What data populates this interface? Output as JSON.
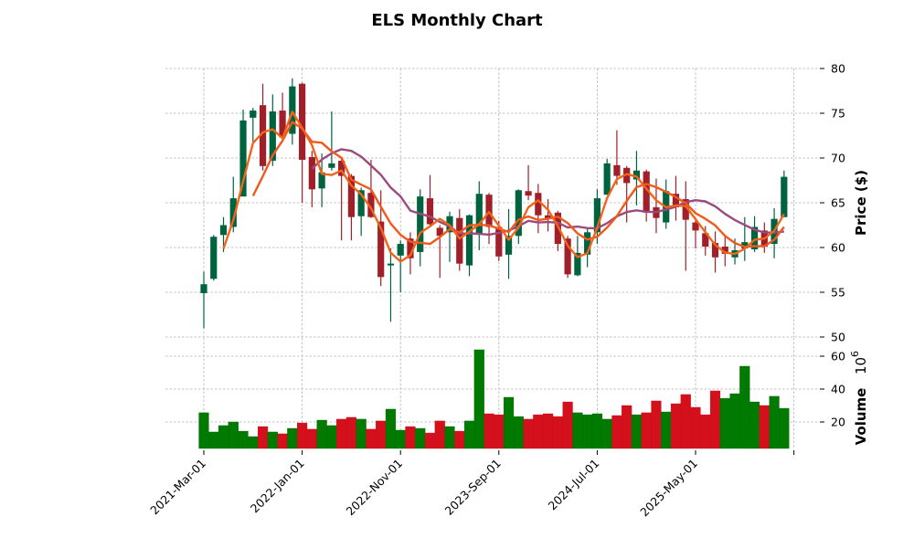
{
  "chart_data": {
    "type": "candlestick",
    "title": "ELS Monthly Chart",
    "ylabel": "Price ($)",
    "volume_label": "Volume",
    "volume_exponent": "10",
    "volume_exponent_power": "6",
    "ylim": [
      50,
      80
    ],
    "yticks": [
      "50",
      "55",
      "60",
      "65",
      "70",
      "75",
      "80"
    ],
    "volume_yticks": [
      "20",
      "40",
      "60"
    ],
    "volume_ylim": [
      4,
      64
    ],
    "start_month": "2021-03",
    "xtick_labels": [
      {
        "index": 0,
        "label": "2021-Mar-01"
      },
      {
        "index": 10,
        "label": "2022-Jan-01"
      },
      {
        "index": 20,
        "label": "2022-Nov-01"
      },
      {
        "index": 30,
        "label": "2023-Sep-01"
      },
      {
        "index": 40,
        "label": "2024-Jul-01"
      },
      {
        "index": 50,
        "label": "2025-May-01"
      }
    ],
    "grid": true,
    "mav_periods": [
      3,
      6,
      12
    ],
    "colors": {
      "up": "#006340",
      "down": "#a01f28",
      "vol_up": "#007a00",
      "vol_down": "#d4101c",
      "mav": [
        "#f26419",
        "#f0581c",
        "#9b4a7e"
      ]
    },
    "ohlc": [
      [
        54.9,
        57.3,
        51.0,
        55.9
      ],
      [
        56.5,
        61.4,
        56.3,
        61.2
      ],
      [
        61.4,
        63.4,
        59.5,
        62.5
      ],
      [
        62.3,
        67.9,
        61.7,
        65.5
      ],
      [
        65.7,
        75.4,
        65.7,
        74.2
      ],
      [
        74.5,
        75.6,
        71.8,
        75.3
      ],
      [
        75.9,
        78.3,
        68.6,
        69.1
      ],
      [
        69.7,
        77.1,
        69.1,
        75.2
      ],
      [
        75.3,
        77.3,
        72.2,
        72.3
      ],
      [
        72.7,
        78.9,
        71.5,
        78.0
      ],
      [
        78.3,
        78.4,
        65.0,
        69.8
      ],
      [
        70.1,
        70.8,
        64.5,
        66.5
      ],
      [
        66.6,
        70.5,
        64.5,
        68.4
      ],
      [
        68.9,
        75.2,
        68.6,
        69.4
      ],
      [
        69.7,
        69.9,
        60.8,
        68.0
      ],
      [
        68.0,
        68.2,
        60.8,
        63.4
      ],
      [
        63.5,
        66.7,
        61.3,
        66.4
      ],
      [
        66.1,
        69.8,
        63.3,
        63.4
      ],
      [
        62.9,
        66.4,
        55.7,
        56.7
      ],
      [
        58.0,
        59.9,
        51.7,
        58.2
      ],
      [
        59.1,
        60.8,
        55.0,
        60.4
      ],
      [
        61.0,
        61.7,
        57.0,
        58.8
      ],
      [
        59.5,
        66.5,
        57.9,
        65.7
      ],
      [
        65.5,
        68.1,
        62.3,
        62.6
      ],
      [
        62.2,
        62.5,
        56.6,
        61.3
      ],
      [
        61.7,
        64.0,
        58.4,
        63.5
      ],
      [
        63.3,
        64.3,
        57.4,
        58.2
      ],
      [
        58.0,
        63.7,
        56.8,
        63.6
      ],
      [
        61.6,
        67.4,
        59.7,
        66.0
      ],
      [
        65.9,
        66.1,
        60.4,
        62.3
      ],
      [
        62.3,
        63.0,
        58.5,
        59.0
      ],
      [
        59.2,
        64.3,
        56.5,
        61.3
      ],
      [
        61.3,
        66.5,
        60.4,
        66.4
      ],
      [
        66.3,
        69.2,
        65.3,
        65.8
      ],
      [
        66.1,
        67.1,
        61.6,
        63.6
      ],
      [
        63.6,
        65.4,
        61.8,
        63.2
      ],
      [
        63.9,
        64.1,
        59.6,
        60.4
      ],
      [
        61.0,
        61.3,
        56.6,
        57.0
      ],
      [
        56.9,
        61.3,
        56.8,
        59.4
      ],
      [
        59.2,
        62.1,
        57.8,
        61.7
      ],
      [
        61.7,
        66.5,
        60.4,
        65.5
      ],
      [
        65.9,
        69.9,
        65.9,
        69.4
      ],
      [
        69.2,
        73.1,
        67.0,
        68.0
      ],
      [
        68.9,
        69.1,
        62.8,
        67.2
      ],
      [
        67.6,
        70.8,
        64.7,
        68.6
      ],
      [
        68.5,
        68.7,
        62.9,
        63.9
      ],
      [
        64.5,
        67.7,
        61.6,
        63.3
      ],
      [
        62.8,
        67.6,
        62.1,
        66.3
      ],
      [
        66.0,
        68.0,
        63.0,
        64.5
      ],
      [
        65.4,
        67.4,
        57.4,
        63.1
      ],
      [
        62.8,
        63.3,
        59.9,
        61.9
      ],
      [
        61.6,
        62.4,
        59.1,
        60.1
      ],
      [
        60.5,
        61.8,
        57.2,
        58.9
      ],
      [
        60.1,
        61.2,
        57.9,
        59.3
      ],
      [
        58.9,
        61.0,
        58.1,
        59.7
      ],
      [
        59.9,
        63.4,
        58.5,
        60.6
      ],
      [
        59.8,
        63.5,
        59.5,
        62.3
      ],
      [
        61.9,
        62.8,
        59.4,
        60.1
      ],
      [
        60.4,
        64.4,
        58.8,
        63.2
      ],
      [
        63.4,
        68.6,
        63.4,
        67.9
      ]
    ],
    "volume_millions": [
      25.6,
      13.9,
      17.8,
      20.0,
      14.4,
      11.1,
      17.2,
      13.9,
      12.8,
      16.1,
      19.4,
      15.6,
      21.1,
      17.8,
      21.7,
      22.8,
      21.7,
      15.6,
      20.6,
      27.8,
      15.0,
      17.2,
      16.1,
      13.3,
      20.6,
      17.2,
      14.4,
      20.6,
      63.9,
      25.0,
      24.4,
      35.0,
      23.3,
      21.7,
      24.4,
      25.0,
      23.3,
      32.2,
      25.6,
      24.4,
      25.0,
      21.7,
      23.9,
      30.0,
      24.4,
      25.6,
      32.8,
      26.1,
      31.1,
      36.7,
      28.9,
      24.4,
      38.9,
      34.4,
      37.2,
      53.9,
      32.2,
      30.0,
      35.6,
      28.3
    ],
    "volume_direction": [
      "up",
      "up",
      "up",
      "up",
      "up",
      "up",
      "down",
      "up",
      "down",
      "up",
      "down",
      "down",
      "up",
      "up",
      "down",
      "down",
      "up",
      "down",
      "down",
      "up",
      "up",
      "down",
      "up",
      "down",
      "down",
      "up",
      "down",
      "up",
      "up",
      "down",
      "down",
      "up",
      "up",
      "down",
      "down",
      "down",
      "down",
      "down",
      "up",
      "up",
      "up",
      "up",
      "down",
      "down",
      "up",
      "down",
      "down",
      "up",
      "down",
      "down",
      "down",
      "down",
      "down",
      "up",
      "up",
      "up",
      "up",
      "down",
      "up",
      "up"
    ]
  }
}
